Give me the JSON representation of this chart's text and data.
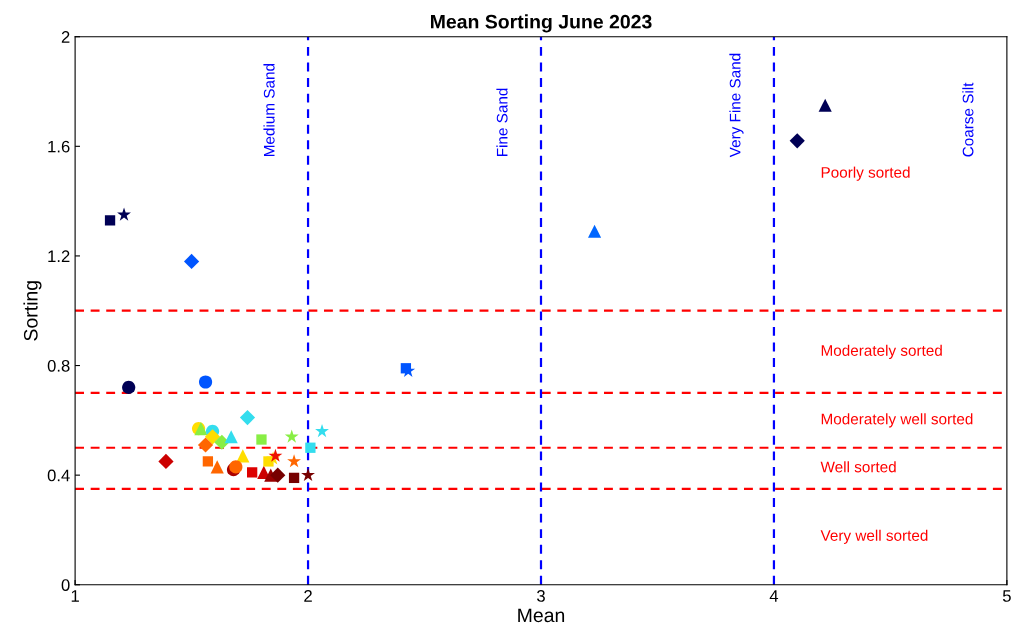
{
  "chart_data": {
    "type": "scatter",
    "title": "Mean Sorting June 2023",
    "xlabel": "Mean",
    "ylabel": "Sorting",
    "xlim": [
      1,
      5
    ],
    "ylim": [
      0,
      2
    ],
    "xticks": [
      1,
      2,
      3,
      4,
      5
    ],
    "yticks": [
      0,
      0.4,
      0.8,
      1.2,
      1.6,
      2
    ],
    "grid": false,
    "legend": false,
    "series": [
      {
        "marker": "diamond",
        "color": "#cc0000",
        "x": [
          1.39
        ],
        "values": [
          0.45
        ]
      },
      {
        "marker": "circle",
        "color": "#ffdd00",
        "x": [
          1.53
        ],
        "values": [
          0.57
        ]
      },
      {
        "marker": "triangle",
        "color": "#88ee44",
        "x": [
          1.54
        ],
        "values": [
          0.57
        ]
      },
      {
        "marker": "circle",
        "color": "#33ddee",
        "x": [
          1.59
        ],
        "values": [
          0.56
        ]
      },
      {
        "marker": "diamond",
        "color": "#ffdd00",
        "x": [
          1.59
        ],
        "values": [
          0.54
        ]
      },
      {
        "marker": "diamond",
        "color": "#ff6600",
        "x": [
          1.56
        ],
        "values": [
          0.51
        ]
      },
      {
        "marker": "diamond",
        "color": "#88ee44",
        "x": [
          1.63
        ],
        "values": [
          0.52
        ]
      },
      {
        "marker": "triangle",
        "color": "#33ddee",
        "x": [
          1.67
        ],
        "values": [
          0.54
        ]
      },
      {
        "marker": "diamond",
        "color": "#33ddee",
        "x": [
          1.74
        ],
        "values": [
          0.61
        ]
      },
      {
        "marker": "square",
        "color": "#88ee44",
        "x": [
          1.8
        ],
        "values": [
          0.53
        ]
      },
      {
        "marker": "star",
        "color": "#88ee44",
        "x": [
          1.93
        ],
        "values": [
          0.54
        ]
      },
      {
        "marker": "star",
        "color": "#33ddee",
        "x": [
          2.06
        ],
        "values": [
          0.56
        ]
      },
      {
        "marker": "square",
        "color": "#33ddee",
        "x": [
          2.01
        ],
        "values": [
          0.5
        ]
      },
      {
        "marker": "triangle",
        "color": "#ffdd00",
        "x": [
          1.72
        ],
        "values": [
          0.47
        ]
      },
      {
        "marker": "square",
        "color": "#ff6600",
        "x": [
          1.57
        ],
        "values": [
          0.45
        ]
      },
      {
        "marker": "triangle",
        "color": "#ff6600",
        "x": [
          1.61
        ],
        "values": [
          0.43
        ]
      },
      {
        "marker": "circle",
        "color": "#aa0000",
        "x": [
          1.68
        ],
        "values": [
          0.42
        ]
      },
      {
        "marker": "circle",
        "color": "#ff6600",
        "x": [
          1.69
        ],
        "values": [
          0.43
        ]
      },
      {
        "marker": "square",
        "color": "#dd0000",
        "x": [
          1.76
        ],
        "values": [
          0.41
        ]
      },
      {
        "marker": "triangle",
        "color": "#cc0000",
        "x": [
          1.81
        ],
        "values": [
          0.41
        ]
      },
      {
        "marker": "triangle",
        "color": "#990000",
        "x": [
          1.84
        ],
        "values": [
          0.4
        ]
      },
      {
        "marker": "diamond",
        "color": "#770000",
        "x": [
          1.87
        ],
        "values": [
          0.4
        ]
      },
      {
        "marker": "square",
        "color": "#ffdd00",
        "x": [
          1.83
        ],
        "values": [
          0.45
        ]
      },
      {
        "marker": "star",
        "color": "#ffdd00",
        "x": [
          1.85
        ],
        "values": [
          0.46
        ]
      },
      {
        "marker": "star",
        "color": "#ee1100",
        "x": [
          1.86
        ],
        "values": [
          0.47
        ]
      },
      {
        "marker": "star",
        "color": "#ff6600",
        "x": [
          1.94
        ],
        "values": [
          0.45
        ]
      },
      {
        "marker": "square",
        "color": "#770000",
        "x": [
          1.94
        ],
        "values": [
          0.39
        ]
      },
      {
        "marker": "star",
        "color": "#770000",
        "x": [
          2.0
        ],
        "values": [
          0.4
        ]
      },
      {
        "marker": "circle",
        "color": "#000055",
        "x": [
          1.23
        ],
        "values": [
          0.72
        ]
      },
      {
        "marker": "circle",
        "color": "#0055ff",
        "x": [
          1.56
        ],
        "values": [
          0.74
        ]
      },
      {
        "marker": "square",
        "color": "#000055",
        "x": [
          1.15
        ],
        "values": [
          1.33
        ]
      },
      {
        "marker": "star",
        "color": "#000055",
        "x": [
          1.21
        ],
        "values": [
          1.35
        ]
      },
      {
        "marker": "diamond",
        "color": "#0055ff",
        "x": [
          1.5
        ],
        "values": [
          1.18
        ]
      },
      {
        "marker": "square",
        "color": "#0055ff",
        "x": [
          2.42
        ],
        "values": [
          0.79
        ]
      },
      {
        "marker": "star",
        "color": "#0055ff",
        "x": [
          2.43
        ],
        "values": [
          0.78
        ]
      },
      {
        "marker": "triangle",
        "color": "#0066ff",
        "x": [
          3.23
        ],
        "values": [
          1.29
        ]
      },
      {
        "marker": "triangle",
        "color": "#000055",
        "x": [
          4.22
        ],
        "values": [
          1.75
        ]
      },
      {
        "marker": "diamond",
        "color": "#000055",
        "x": [
          4.1
        ],
        "values": [
          1.62
        ]
      }
    ],
    "ref_lines": [
      {
        "axis": "y",
        "value": 0.35,
        "color": "#ff0000",
        "line_style": "dashed"
      },
      {
        "axis": "y",
        "value": 0.5,
        "color": "#ff0000",
        "line_style": "dashed"
      },
      {
        "axis": "y",
        "value": 0.7,
        "color": "#ff0000",
        "line_style": "dashed"
      },
      {
        "axis": "y",
        "value": 1.0,
        "color": "#ff0000",
        "line_style": "dashed"
      },
      {
        "axis": "x",
        "value": 2,
        "color": "#0000ff",
        "line_style": "dashed"
      },
      {
        "axis": "x",
        "value": 3,
        "color": "#0000ff",
        "line_style": "dashed"
      },
      {
        "axis": "x",
        "value": 4,
        "color": "#0000ff",
        "line_style": "dashed"
      }
    ],
    "annotations": [
      "Medium Sand",
      "Fine Sand",
      "Very Fine Sand",
      "Coarse Silt",
      "Poorly sorted",
      "Moderately sorted",
      "Moderately well sorted",
      "Well sorted",
      "Very well sorted"
    ]
  }
}
